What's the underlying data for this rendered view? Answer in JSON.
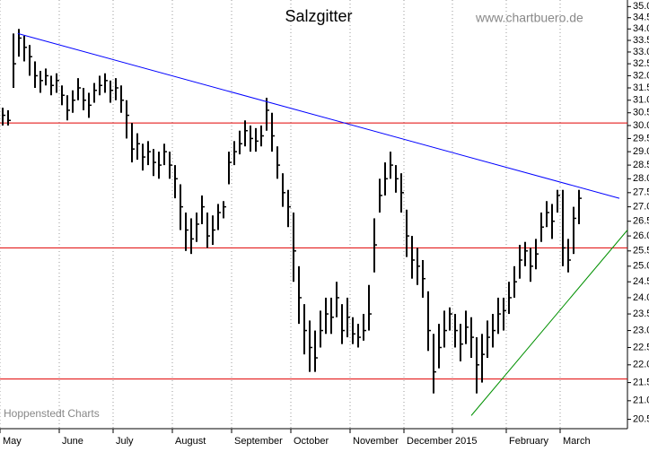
{
  "chart_data": {
    "type": "ohlc",
    "title": "Salzgitter",
    "source": "www.chartbuero.de",
    "credit": "Hoppenstedt Charts",
    "log_scale": true,
    "color": "#000000",
    "categories": [
      "May",
      null,
      null,
      null,
      null,
      null,
      null,
      null,
      null,
      null,
      null,
      "June",
      null,
      null,
      null,
      null,
      null,
      null,
      null,
      null,
      null,
      "July",
      null,
      null,
      null,
      null,
      null,
      null,
      null,
      null,
      null,
      null,
      "August",
      null,
      null,
      null,
      null,
      null,
      null,
      null,
      null,
      null,
      null,
      "September",
      null,
      null,
      null,
      null,
      null,
      null,
      null,
      null,
      null,
      null,
      "October",
      null,
      null,
      null,
      null,
      null,
      null,
      null,
      null,
      null,
      null,
      "November",
      null,
      null,
      null,
      null,
      null,
      null,
      null,
      null,
      null,
      "December",
      null,
      null,
      null,
      null,
      null,
      null,
      null,
      null,
      "2015",
      null,
      null,
      null,
      null,
      null,
      null,
      null,
      null,
      null,
      "February",
      null,
      null,
      null,
      null,
      null,
      null,
      null,
      null,
      null,
      "March",
      null,
      null,
      null
    ],
    "high": [
      30.7,
      30.6,
      33.8,
      34.0,
      33.7,
      33.3,
      32.6,
      32.2,
      32.3,
      32.0,
      32.1,
      31.6,
      31.2,
      31.4,
      31.9,
      31.5,
      31.3,
      31.7,
      32.0,
      32.1,
      31.8,
      31.9,
      31.6,
      31.0,
      30.1,
      29.7,
      29.3,
      29.4,
      29.1,
      29.0,
      29.3,
      29.0,
      28.5,
      27.8,
      26.8,
      26.6,
      26.8,
      27.4,
      26.8,
      26.7,
      27.1,
      27.2,
      29.0,
      29.4,
      29.8,
      30.2,
      30.0,
      29.9,
      30.0,
      31.1,
      30.5,
      29.2,
      28.2,
      27.6,
      26.8,
      25.0,
      23.8,
      23.3,
      23.0,
      23.6,
      24.0,
      24.0,
      24.5,
      23.8,
      24.0,
      23.4,
      23.2,
      23.5,
      24.4,
      26.6,
      28.0,
      28.6,
      29.0,
      28.5,
      28.2,
      26.9,
      26.0,
      25.6,
      25.2,
      24.2,
      22.9,
      23.2,
      23.6,
      23.7,
      23.5,
      23.2,
      23.6,
      23.4,
      22.8,
      22.9,
      23.3,
      23.5,
      24.0,
      24.0,
      24.5,
      25.0,
      25.7,
      25.8,
      25.6,
      25.9,
      26.8,
      27.2,
      27.1,
      27.6,
      27.6,
      25.9,
      27.0,
      27.6
    ],
    "low": [
      30.0,
      30.0,
      31.5,
      32.8,
      32.6,
      32.0,
      31.5,
      31.3,
      31.6,
      31.2,
      31.3,
      30.8,
      30.2,
      30.5,
      31.0,
      30.6,
      30.3,
      30.9,
      31.2,
      31.3,
      30.9,
      31.0,
      30.5,
      29.5,
      28.6,
      28.7,
      28.3,
      28.5,
      28.1,
      28.0,
      28.5,
      28.0,
      27.3,
      26.2,
      25.5,
      25.4,
      25.8,
      26.4,
      25.6,
      25.7,
      26.2,
      26.6,
      27.8,
      28.5,
      28.9,
      29.2,
      29.0,
      29.0,
      29.2,
      29.8,
      29.0,
      28.0,
      27.0,
      26.3,
      24.5,
      23.2,
      22.3,
      21.8,
      21.8,
      22.5,
      22.9,
      22.9,
      23.4,
      22.6,
      22.8,
      22.6,
      22.5,
      22.7,
      23.0,
      24.8,
      26.8,
      27.4,
      28.0,
      27.5,
      26.8,
      25.3,
      24.6,
      24.4,
      24.0,
      22.4,
      21.2,
      21.9,
      22.5,
      23.0,
      22.5,
      22.1,
      22.6,
      22.2,
      21.2,
      21.5,
      22.2,
      22.5,
      22.9,
      23.0,
      23.5,
      24.0,
      24.6,
      25.0,
      24.5,
      24.9,
      25.8,
      26.3,
      25.9,
      26.8,
      25.0,
      24.8,
      25.4,
      26.4
    ],
    "close": [
      30.4,
      30.2,
      32.5,
      33.6,
      33.2,
      32.8,
      32.0,
      31.8,
      32.0,
      31.6,
      31.8,
      31.2,
      30.6,
      31.0,
      31.5,
      31.0,
      30.8,
      31.4,
      31.6,
      31.8,
      31.4,
      31.5,
      31.0,
      30.4,
      29.1,
      29.3,
      28.8,
      29.0,
      28.6,
      28.5,
      29.0,
      28.5,
      28.0,
      27.0,
      26.2,
      25.9,
      26.4,
      27.0,
      26.0,
      26.2,
      26.8,
      27.0,
      28.6,
      29.0,
      29.3,
      29.8,
      29.5,
      29.4,
      29.6,
      30.6,
      29.6,
      28.5,
      27.5,
      27.0,
      25.5,
      24.0,
      23.0,
      22.5,
      22.2,
      23.0,
      23.5,
      23.4,
      24.0,
      23.0,
      23.4,
      22.9,
      22.8,
      23.0,
      23.5,
      25.7,
      27.4,
      28.0,
      28.5,
      28.0,
      27.5,
      26.0,
      25.2,
      25.0,
      24.6,
      23.0,
      21.8,
      22.5,
      23.0,
      23.5,
      23.0,
      22.6,
      23.1,
      22.8,
      22.0,
      22.3,
      22.8,
      23.0,
      23.5,
      23.6,
      24.0,
      24.5,
      25.2,
      25.5,
      25.0,
      25.4,
      26.3,
      26.8,
      26.5,
      27.4,
      25.6,
      25.2,
      26.6,
      27.3
    ],
    "ylim": [
      20.3,
      35.3
    ],
    "yticks": [
      20.5,
      {
        "value": 21,
        "label": "21.0"
      },
      21.5,
      {
        "value": 22,
        "label": "22.0"
      },
      22.5,
      {
        "value": 23,
        "label": "23.0"
      },
      23.5,
      {
        "value": 24,
        "label": "24.0"
      },
      24.5,
      {
        "value": 25,
        "label": "25.0"
      },
      25.5,
      {
        "value": 26,
        "label": "26.0"
      },
      26.5,
      {
        "value": 27,
        "label": "27.0"
      },
      27.5,
      {
        "value": 28,
        "label": "28.0"
      },
      28.5,
      {
        "value": 29,
        "label": "29.0"
      },
      29.5,
      {
        "value": 30,
        "label": "30.0"
      },
      30.5,
      {
        "value": 31,
        "label": "31.0"
      },
      31.5,
      {
        "value": 32,
        "label": "32.0"
      },
      32.5,
      {
        "value": 33,
        "label": "33.0"
      },
      33.5,
      {
        "value": 34,
        "label": "34.0"
      },
      34.5,
      {
        "value": 35,
        "label": "35.0"
      }
    ],
    "hlines": {
      "color": "#e00000",
      "values": [
        30.1,
        25.6,
        21.6
      ]
    },
    "trendlines": [
      {
        "color": "#0000ff",
        "x": [
          2.8,
          114.5
        ],
        "y": [
          33.8,
          27.3
        ]
      },
      {
        "color": "#009000",
        "x": [
          87,
          116
        ],
        "y": [
          20.6,
          26.2
        ]
      }
    ]
  }
}
